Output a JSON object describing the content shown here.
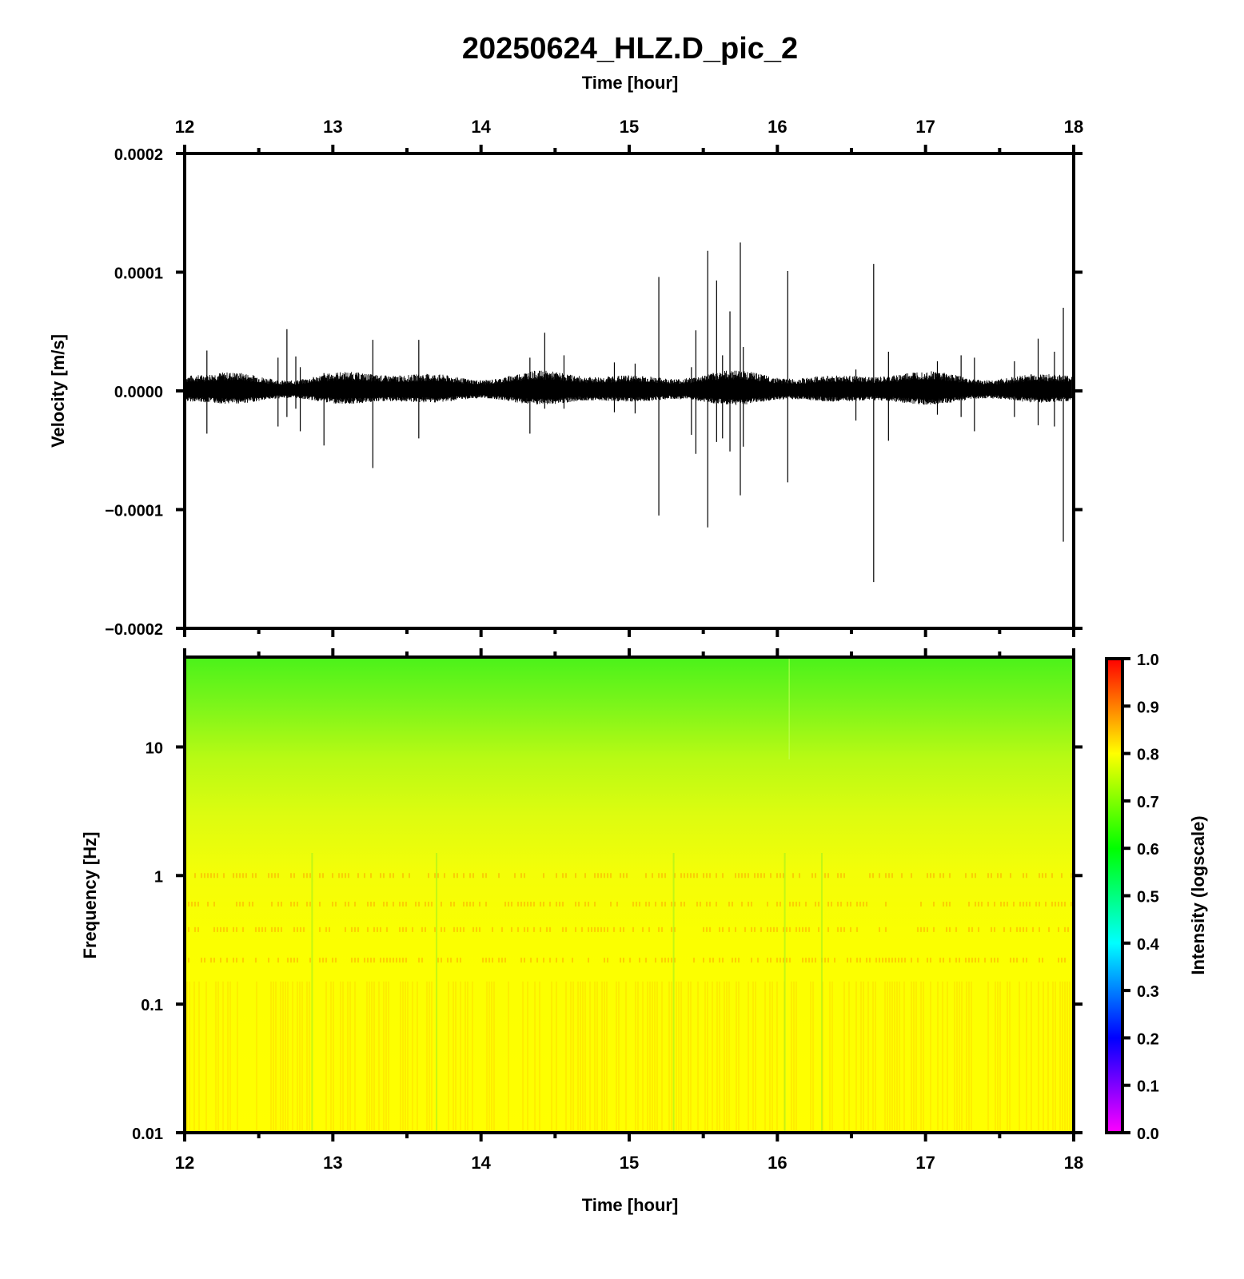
{
  "title": "20250624_HLZ.D_pic_2",
  "chart_data": [
    {
      "type": "line",
      "name": "waveform",
      "xlabel": "Time [hour]",
      "ylabel": "Velocity [m/s]",
      "xlim": [
        12,
        18
      ],
      "ylim": [
        -0.0002,
        0.0002
      ],
      "x_ticks": [
        "12",
        "13",
        "14",
        "15",
        "16",
        "17",
        "18"
      ],
      "y_ticks": [
        {
          "value": 0.0002,
          "label": "0.0002"
        },
        {
          "value": 0.0001,
          "label": "0.0001"
        },
        {
          "value": 0.0,
          "label": "0.0000"
        },
        {
          "value": -0.0001,
          "label": "−0.0001"
        },
        {
          "value": -0.0002,
          "label": "−0.0002"
        }
      ],
      "noise_band": {
        "upper": 1.75e-05,
        "lower": -1.2e-05
      },
      "spikes": [
        {
          "t": 12.15,
          "max": 3.4e-05,
          "min": -3.6e-05
        },
        {
          "t": 12.63,
          "max": 2.8e-05,
          "min": -3e-05
        },
        {
          "t": 12.69,
          "max": 5.2e-05,
          "min": -2.2e-05
        },
        {
          "t": 12.75,
          "max": 2.9e-05,
          "min": -1.5e-05
        },
        {
          "t": 12.78,
          "max": 2e-05,
          "min": -3.4e-05
        },
        {
          "t": 12.94,
          "max": 1.5e-05,
          "min": -4.6e-05
        },
        {
          "t": 13.27,
          "max": 4.3e-05,
          "min": -6.5e-05
        },
        {
          "t": 13.58,
          "max": 4.3e-05,
          "min": -4e-05
        },
        {
          "t": 14.33,
          "max": 2.8e-05,
          "min": -3.6e-05
        },
        {
          "t": 14.43,
          "max": 4.9e-05,
          "min": -1.5e-05
        },
        {
          "t": 14.56,
          "max": 3e-05,
          "min": -1.5e-05
        },
        {
          "t": 14.9,
          "max": 2.4e-05,
          "min": -1.8e-05
        },
        {
          "t": 15.04,
          "max": 2.3e-05,
          "min": -1.9e-05
        },
        {
          "t": 15.2,
          "max": 9.6e-05,
          "min": -0.000105
        },
        {
          "t": 15.42,
          "max": 2e-05,
          "min": -3.7e-05
        },
        {
          "t": 15.45,
          "max": 5.1e-05,
          "min": -5.3e-05
        },
        {
          "t": 15.53,
          "max": 0.000118,
          "min": -0.000115
        },
        {
          "t": 15.59,
          "max": 9.3e-05,
          "min": -4.3e-05
        },
        {
          "t": 15.63,
          "max": 3e-05,
          "min": -4e-05
        },
        {
          "t": 15.68,
          "max": 6.7e-05,
          "min": -5.1e-05
        },
        {
          "t": 15.75,
          "max": 0.000125,
          "min": -8.8e-05
        },
        {
          "t": 15.77,
          "max": 3.7e-05,
          "min": -4.7e-05
        },
        {
          "t": 16.07,
          "max": 0.000101,
          "min": -7.7e-05
        },
        {
          "t": 16.53,
          "max": 1.8e-05,
          "min": -2.5e-05
        },
        {
          "t": 16.65,
          "max": 0.000107,
          "min": -0.000161
        },
        {
          "t": 16.75,
          "max": 3.3e-05,
          "min": -4.2e-05
        },
        {
          "t": 17.08,
          "max": 2.5e-05,
          "min": -2e-05
        },
        {
          "t": 17.24,
          "max": 3e-05,
          "min": -2.2e-05
        },
        {
          "t": 17.33,
          "max": 2.8e-05,
          "min": -3.4e-05
        },
        {
          "t": 17.6,
          "max": 2.5e-05,
          "min": -2.2e-05
        },
        {
          "t": 17.76,
          "max": 4.4e-05,
          "min": -2.9e-05
        },
        {
          "t": 17.87,
          "max": 3.3e-05,
          "min": -3e-05
        },
        {
          "t": 17.93,
          "max": 7e-05,
          "min": -0.000127
        }
      ]
    },
    {
      "type": "heatmap",
      "name": "spectrogram",
      "xlabel": "Time [hour]",
      "ylabel": "Frequency [Hz]",
      "xlim": [
        12,
        18
      ],
      "ylim": [
        0.01,
        50
      ],
      "y_scale": "log",
      "x_ticks": [
        "12",
        "13",
        "14",
        "15",
        "16",
        "17",
        "18"
      ],
      "y_ticks": [
        {
          "value": 10,
          "label": "10"
        },
        {
          "value": 1,
          "label": "1"
        },
        {
          "value": 0.1,
          "label": "0.1"
        },
        {
          "value": 0.01,
          "label": "0.01"
        }
      ],
      "intensity_profile": [
        {
          "freq": 50,
          "intensity": 0.61
        },
        {
          "freq": 20,
          "intensity": 0.66
        },
        {
          "freq": 10,
          "intensity": 0.7
        },
        {
          "freq": 3,
          "intensity": 0.75
        },
        {
          "freq": 1,
          "intensity": 0.78
        },
        {
          "freq": 0.1,
          "intensity": 0.79
        },
        {
          "freq": 0.01,
          "intensity": 0.8
        }
      ],
      "colorbar": {
        "label": "Intensity (logscale)",
        "range": [
          0.0,
          1.0
        ],
        "ticks": [
          "1.0",
          "0.9",
          "0.8",
          "0.7",
          "0.6",
          "0.5",
          "0.4",
          "0.3",
          "0.2",
          "0.1",
          "0.0"
        ],
        "colors": [
          "#ff00ff",
          "#0000ff",
          "#00ffff",
          "#00ff00",
          "#ffff00",
          "#ff0000"
        ]
      }
    }
  ]
}
